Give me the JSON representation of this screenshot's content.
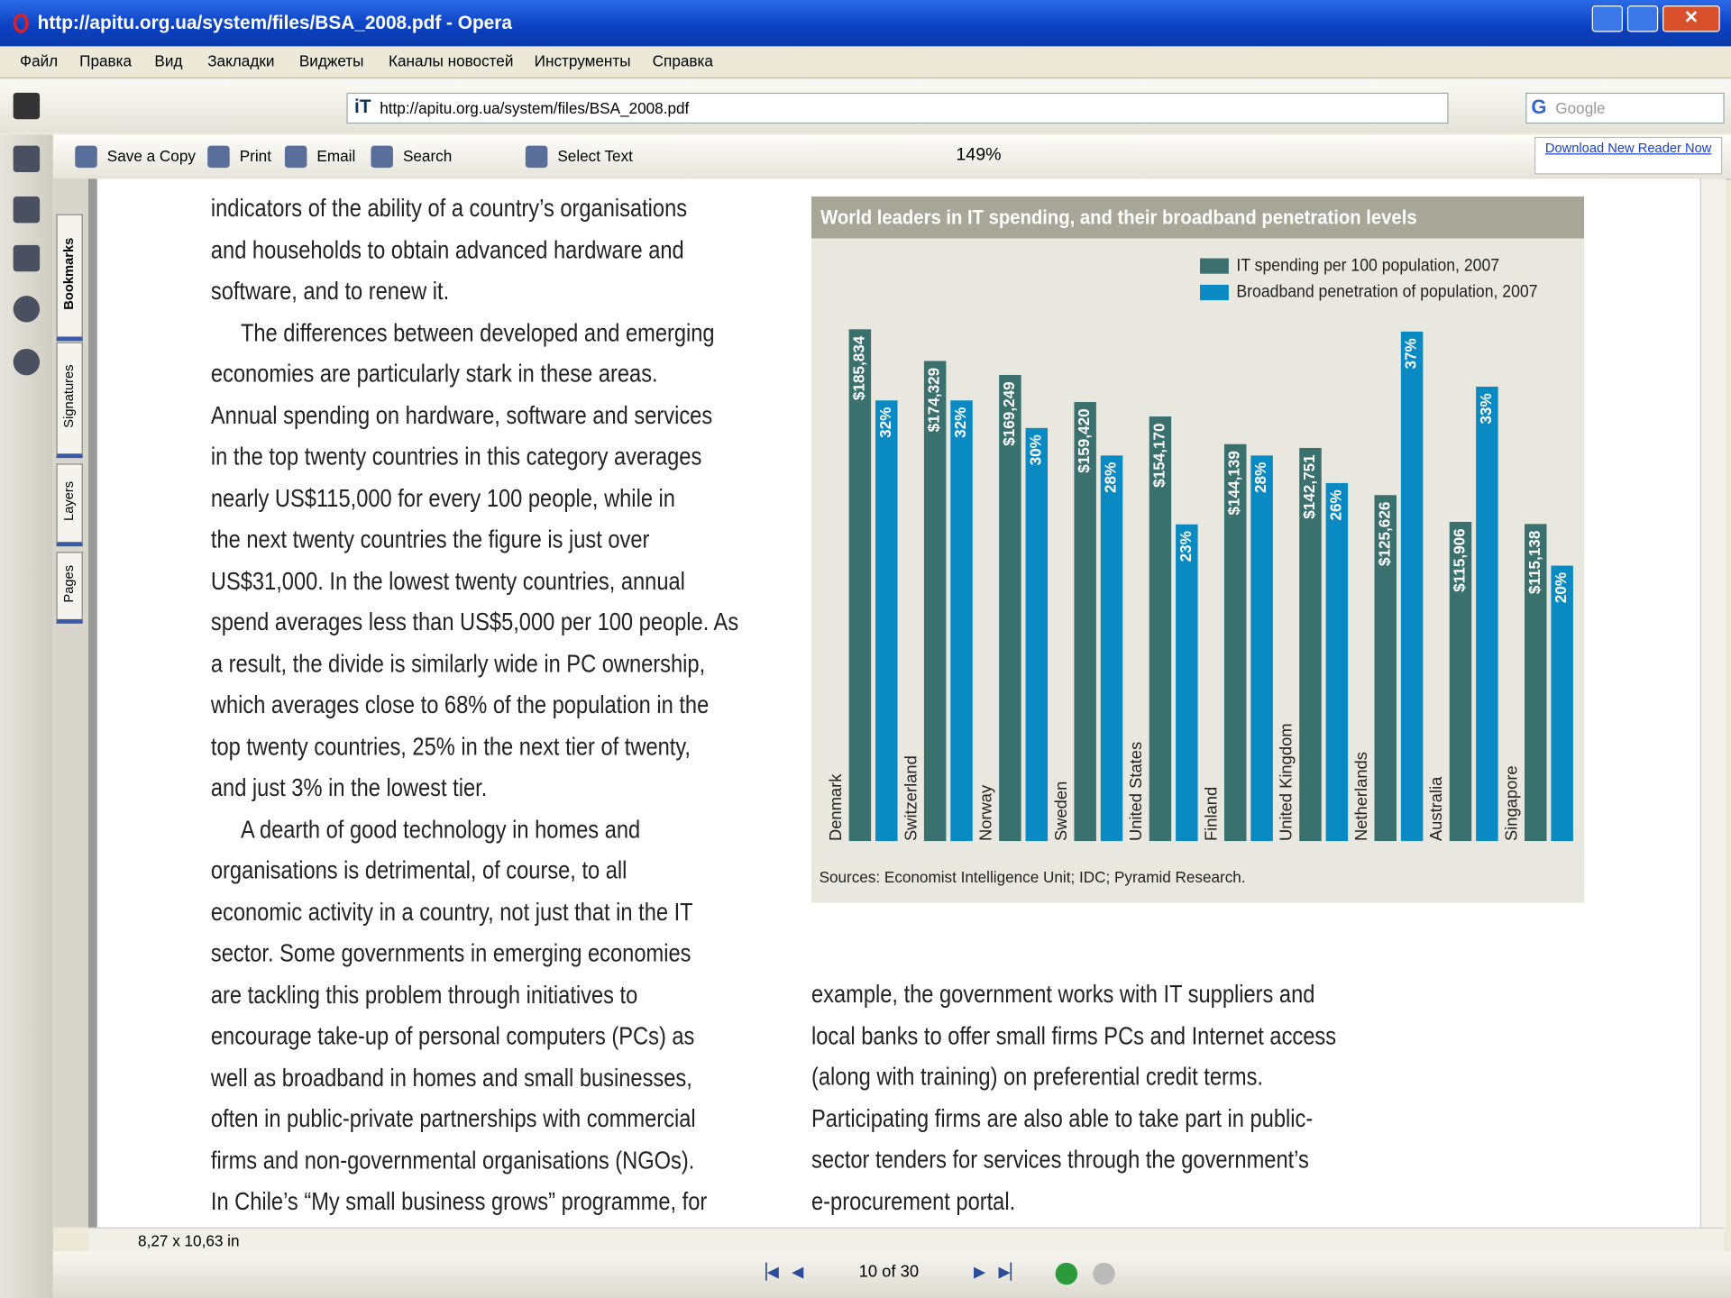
{
  "window": {
    "title": "http://apitu.org.ua/system/files/BSA_2008.pdf - Opera"
  },
  "menu": [
    "Файл",
    "Правка",
    "Вид",
    "Закладки",
    "Виджеты",
    "Каналы новостей",
    "Инструменты",
    "Справка"
  ],
  "address": {
    "url": "http://apitu.org.ua/system/files/BSA_2008.pdf",
    "search": "Google"
  },
  "toolbar": {
    "buttons": [
      "Save a Copy",
      "Print",
      "Email",
      "Search",
      "Select Text"
    ],
    "zoom": "149%",
    "reader": "Download New Reader Now"
  },
  "panel_tabs": [
    "Bookmarks",
    "Signatures",
    "Layers",
    "Pages"
  ],
  "status": {
    "size": "8,27 x 10,63 in",
    "page": "10 of 30"
  },
  "text": {
    "left": [
      [
        "indicators of the ability of a country’s organisations",
        "and households to obtain advanced hardware and",
        "software, and to renew it."
      ],
      [
        "The differences between developed and emerging",
        "economies are particularly stark in these areas.",
        "Annual spending on hardware, software and services",
        "in the top twenty countries in this category averages",
        "nearly US$115,000 for every 100 people, while in",
        "the next twenty countries the figure is just over",
        "US$31,000. In the lowest twenty countries, annual",
        "spend averages less than US$5,000 per 100 people. As",
        "a result, the divide is similarly wide in PC ownership,",
        "which averages close to 68% of the population in the",
        "top twenty countries, 25% in the next tier of twenty,",
        "and just 3% in the lowest tier."
      ],
      [
        "A dearth of good technology in homes and",
        "organisations is detrimental, of course, to all",
        "economic activity in a country, not just that in the IT",
        "sector. Some governments in emerging economies",
        "are tackling this problem through initiatives to",
        "encourage take-up of personal computers (PCs) as",
        "well as broadband in homes and small businesses,",
        "often in public-private partnerships with commercial",
        "firms and non-governmental organisations (NGOs).",
        "In Chile’s “My small business grows” programme, for"
      ]
    ],
    "right": [
      "example, the government works with IT suppliers and",
      "local banks to offer small firms PCs and Internet access",
      "(along with training) on preferential credit terms.",
      "Participating firms are also able to take part in public-",
      "sector tenders for services through the government’s",
      "e-procurement portal."
    ]
  },
  "chart_data": {
    "type": "bar",
    "title": "World leaders in IT spending, and their broadband penetration levels",
    "categories": [
      "Denmark",
      "Switzerland",
      "Norway",
      "Sweden",
      "United States",
      "Finland",
      "United Kingdom",
      "Netherlands",
      "Australia",
      "Singapore"
    ],
    "series": [
      {
        "name": "IT spending per 100 population, 2007",
        "color": "#3a716f",
        "values": [
          185834,
          174329,
          169249,
          159420,
          154170,
          144139,
          142751,
          125626,
          115906,
          115138
        ],
        "value_labels": [
          "$185,834",
          "$174,329",
          "$169,249",
          "$159,420",
          "$154,170",
          "$144,139",
          "$142,751",
          "$125,626",
          "$115,906",
          "$115,138"
        ]
      },
      {
        "name": "Broadband penetration of population, 2007",
        "color": "#0a8ac2",
        "axis": "y2",
        "values": [
          32,
          32,
          30,
          28,
          23,
          28,
          26,
          37,
          33,
          20
        ],
        "value_labels": [
          "32%",
          "32%",
          "30%",
          "28%",
          "23%",
          "28%",
          "26%",
          "37%",
          "33%",
          "20%"
        ]
      }
    ],
    "ylim": [
      0,
      200000
    ],
    "y2lim": [
      0,
      40
    ],
    "source": "Sources: Economist Intelligence Unit; IDC; Pyramid Research."
  }
}
